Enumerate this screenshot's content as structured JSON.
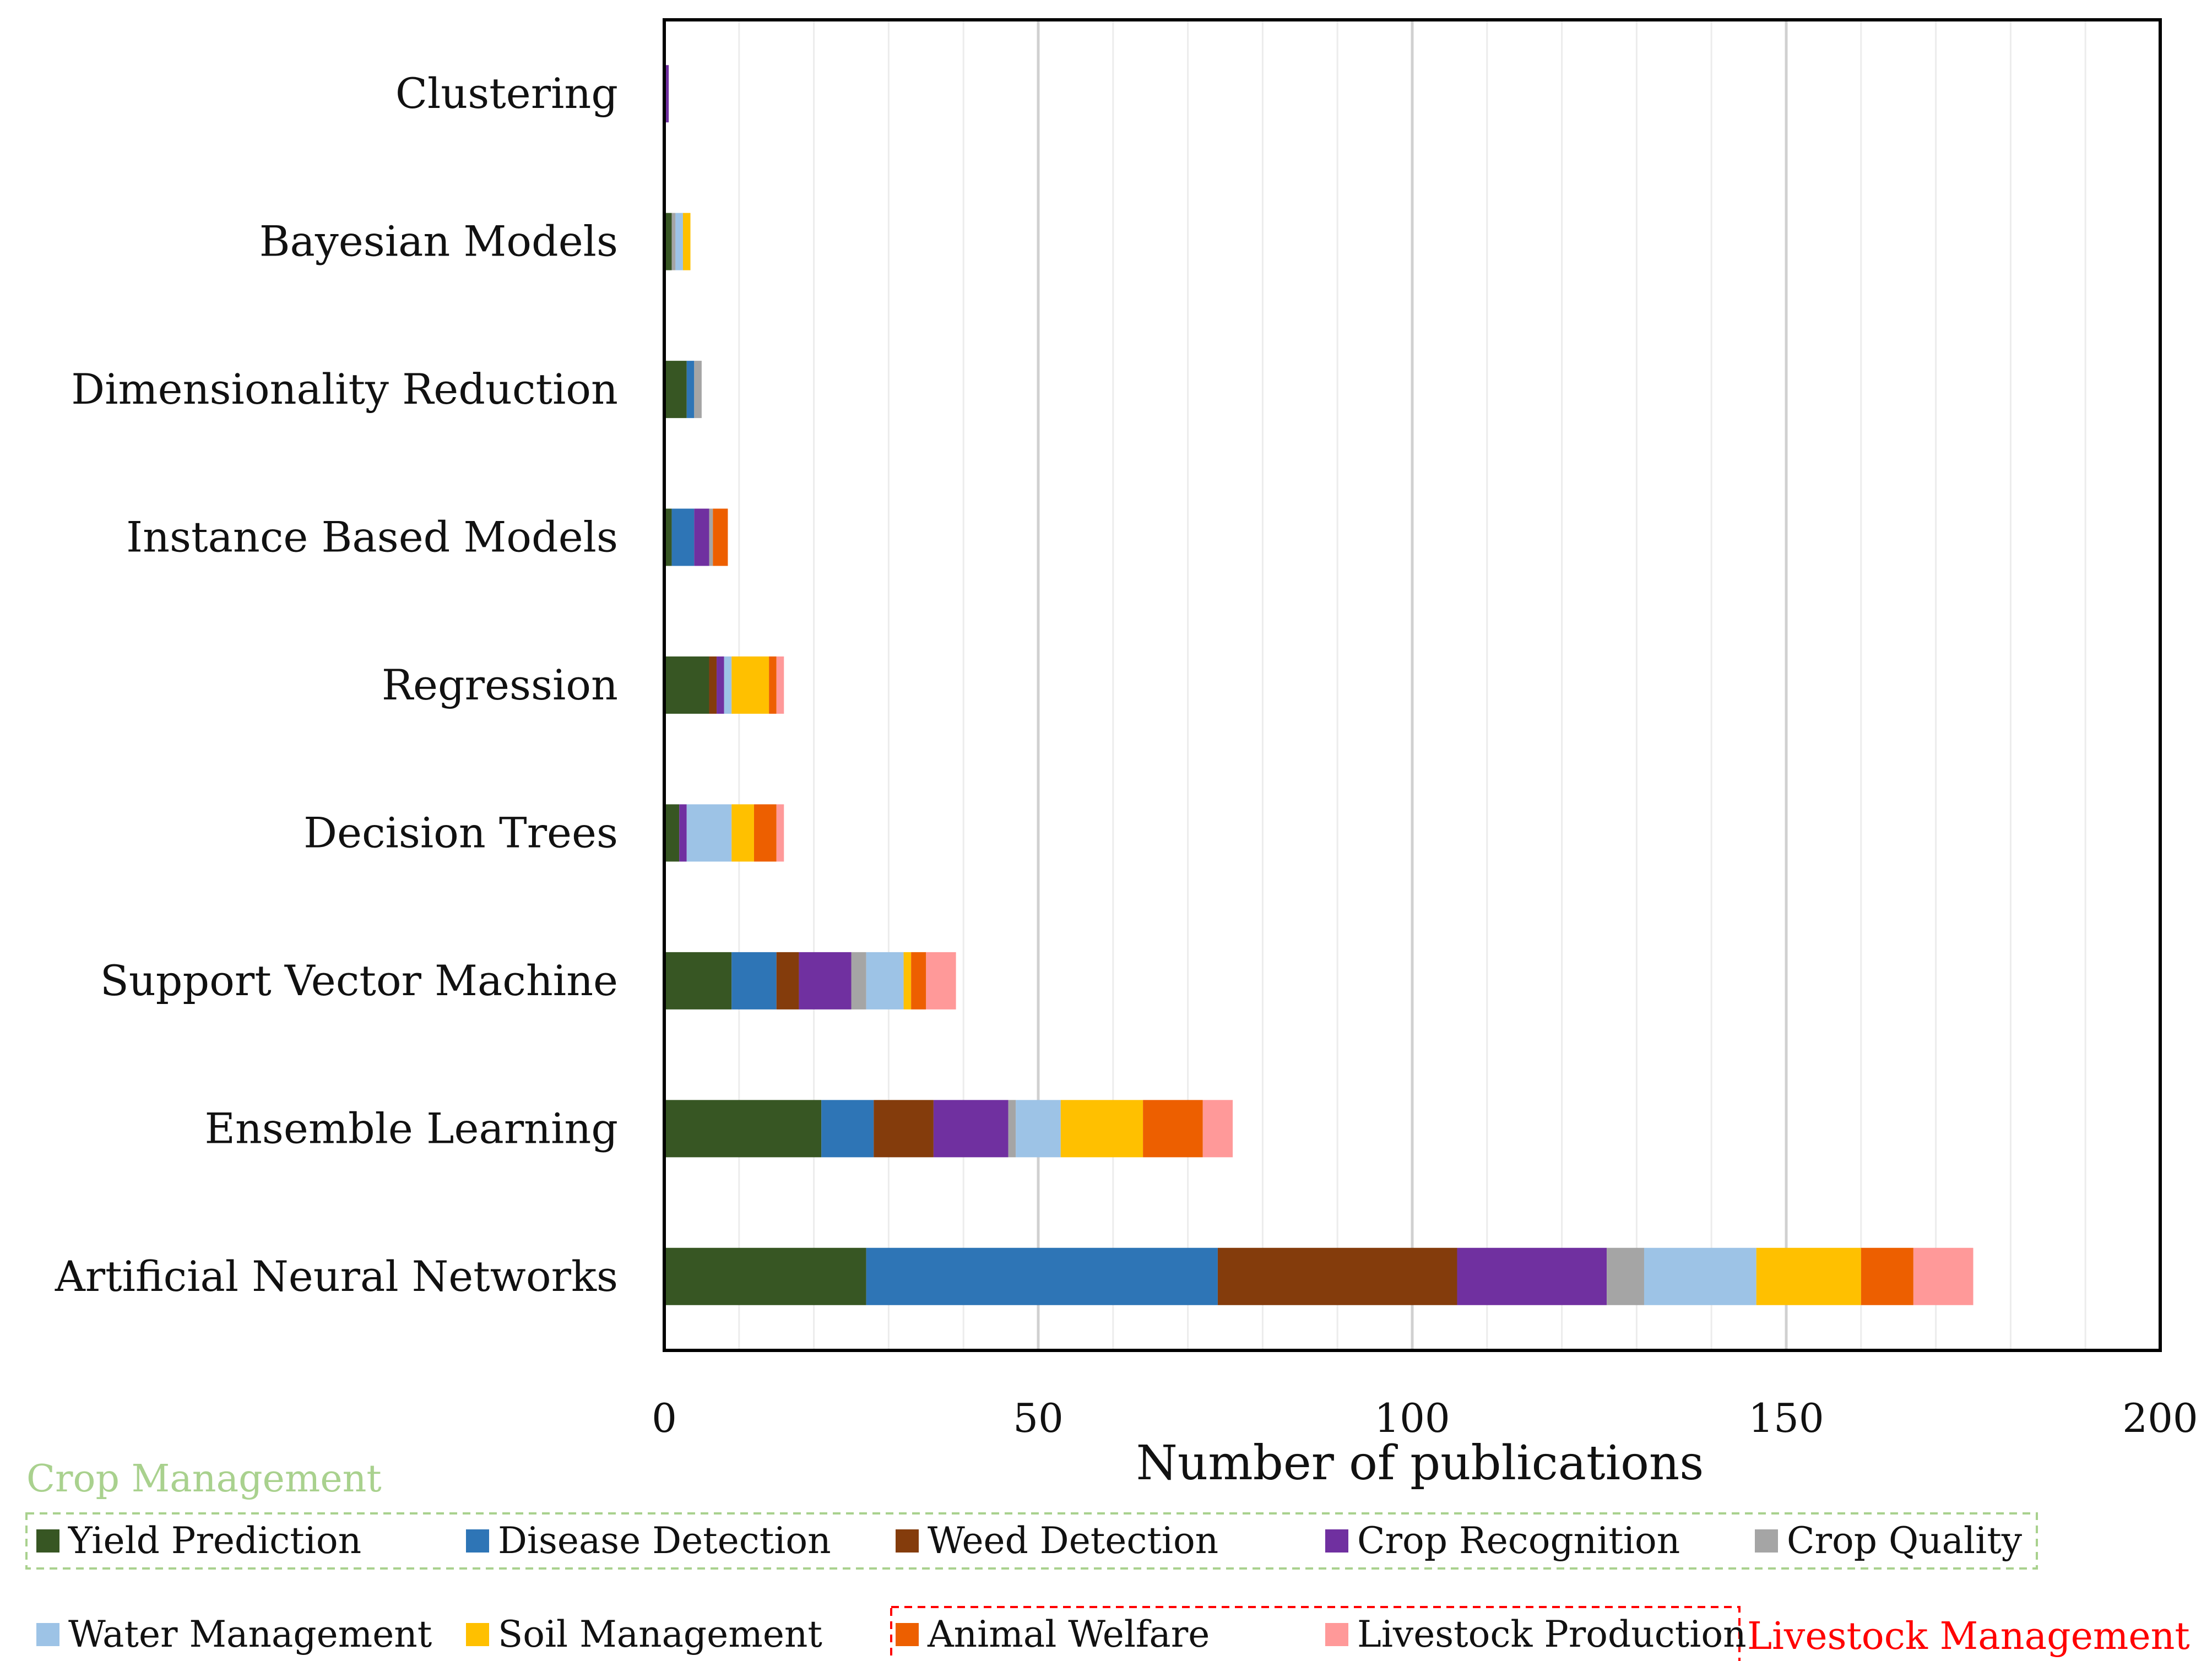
{
  "chart_data": {
    "type": "bar",
    "orientation": "horizontal",
    "stacked": true,
    "title": "",
    "xlabel": "Number of publications",
    "ylabel": "",
    "xlim": [
      0,
      200
    ],
    "xticks": [
      0,
      50,
      100,
      150,
      200
    ],
    "grid": "vertical",
    "categories": [
      "Artificial Neural Networks",
      "Ensemble Learning",
      "Support Vector Machine",
      "Decision Trees",
      "Regression",
      "Instance Based Models",
      "Dimensionality Reduction",
      "Bayesian Models",
      "Clustering"
    ],
    "series": [
      {
        "name": "Yield Prediction",
        "color": "#375623",
        "values": [
          27,
          21,
          9,
          2,
          6,
          1,
          3,
          1,
          0
        ]
      },
      {
        "name": "Disease Detection",
        "color": "#2E75B6",
        "values": [
          47,
          7,
          6,
          0,
          0,
          3,
          1,
          0,
          0
        ]
      },
      {
        "name": "Weed Detection",
        "color": "#843C0C",
        "values": [
          32,
          8,
          3,
          0,
          1,
          0,
          0,
          0,
          0
        ]
      },
      {
        "name": "Crop Recognition",
        "color": "#7030A0",
        "values": [
          20,
          10,
          7,
          1,
          1,
          2,
          0,
          0,
          0.6
        ]
      },
      {
        "name": "Crop  Quality",
        "color": "#A5A5A5",
        "values": [
          5,
          1,
          2,
          0,
          0,
          0.5,
          1,
          0.5,
          0
        ]
      },
      {
        "name": "Water Management",
        "color": "#9DC3E6",
        "values": [
          15,
          6,
          5,
          6,
          1,
          0,
          0,
          1,
          0
        ]
      },
      {
        "name": "Soil Management",
        "color": "#FFC000",
        "values": [
          14,
          11,
          1,
          3,
          5,
          0,
          0,
          1,
          0
        ]
      },
      {
        "name": "Animal Welfare",
        "color": "#ED5F00",
        "values": [
          7,
          8,
          2,
          3,
          1,
          2,
          0,
          0,
          0
        ]
      },
      {
        "name": "Livestock Production",
        "color": "#FF9999",
        "values": [
          8,
          4,
          4,
          1,
          1,
          0,
          0,
          0,
          0
        ]
      }
    ],
    "legend": {
      "placement": "bottom",
      "groups": [
        {
          "label": "Crop Management",
          "color": "#A9D18E",
          "members": [
            "Yield Prediction",
            "Disease Detection",
            "Weed Detection",
            "Crop Recognition",
            "Crop  Quality"
          ]
        },
        {
          "label": "Livestock Management",
          "color": "#FF0000",
          "members": [
            "Animal Welfare",
            "Livestock Production"
          ]
        }
      ]
    }
  }
}
